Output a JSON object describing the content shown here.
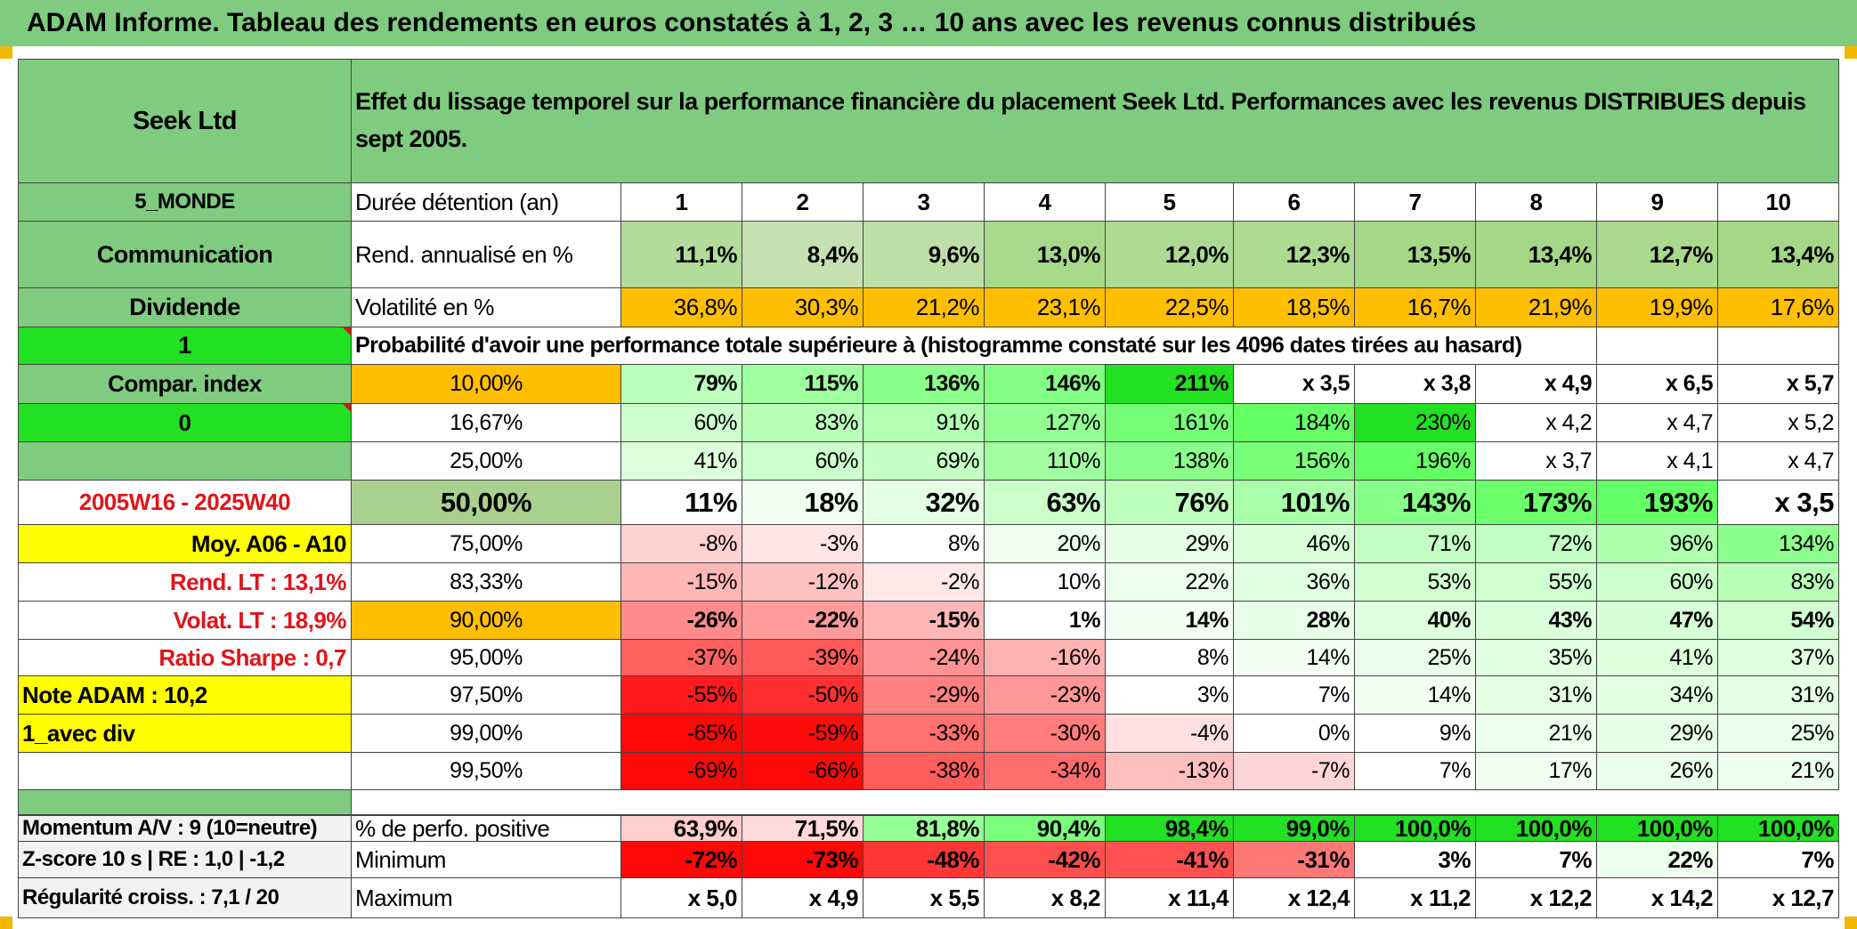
{
  "banner": "ADAM Informe. Tableau des rendements en euros constatés à 1, 2, 3 … 10 ans avec les revenus connus distribués",
  "header": {
    "fund": "Seek Ltd",
    "description": "Effet du lissage temporel sur la performance financière du placement Seek Ltd. Performances avec les revenus DISTRIBUES depuis sept 2005."
  },
  "left": {
    "zone": "5_MONDE",
    "sector": "Communication",
    "income_type": "Dividende",
    "input1": "1",
    "compar_index": "Compar. index",
    "input2": "0",
    "blank": "",
    "period": "2005W16 - 2025W40",
    "moy": "Moy. A06 - A10",
    "rend_lt": "Rend. LT :    13,1%",
    "volat_lt": "Volat. LT :    18,9%",
    "sharpe": "Ratio Sharpe :    0,7",
    "note": "Note ADAM : 10,2",
    "div_mode": "1_avec div",
    "momentum": "Momentum A/V : 9 (10=neutre)",
    "zscore": "Z-score 10 s | RE : 1,0 | -1,2",
    "regularite": "Régularité croiss. : 7,1 / 20"
  },
  "labels": {
    "duree": "Durée détention (an)",
    "rend": "Rend. annualisé en %",
    "vol": "Volatilité en %",
    "proba": "Probabilité d'avoir une performance totale supérieure à (histogramme constaté sur les 4096 dates tirées au hasard)",
    "perfo_pos": "% de perfo. positive",
    "minimum": "Minimum",
    "maximum": "Maximum"
  },
  "years": [
    "1",
    "2",
    "3",
    "4",
    "5",
    "6",
    "7",
    "8",
    "9",
    "10"
  ],
  "rend": [
    "11,1%",
    "8,4%",
    "9,6%",
    "13,0%",
    "12,0%",
    "12,3%",
    "13,5%",
    "13,4%",
    "12,7%",
    "13,4%"
  ],
  "vol": [
    "36,8%",
    "30,3%",
    "21,2%",
    "23,1%",
    "22,5%",
    "18,5%",
    "16,7%",
    "21,9%",
    "19,9%",
    "17,6%"
  ],
  "proba_rows": [
    {
      "p": "10,00%",
      "v": [
        "79%",
        "115%",
        "136%",
        "146%",
        "211%",
        "x 3,5",
        "x 3,8",
        "x 4,9",
        "x 6,5",
        "x 5,7"
      ]
    },
    {
      "p": "16,67%",
      "v": [
        "60%",
        "83%",
        "91%",
        "127%",
        "161%",
        "184%",
        "230%",
        "x 4,2",
        "x 4,7",
        "x 5,2"
      ]
    },
    {
      "p": "25,00%",
      "v": [
        "41%",
        "60%",
        "69%",
        "110%",
        "138%",
        "156%",
        "196%",
        "x 3,7",
        "x 4,1",
        "x 4,7"
      ]
    },
    {
      "p": "50,00%",
      "v": [
        "11%",
        "18%",
        "32%",
        "63%",
        "76%",
        "101%",
        "143%",
        "173%",
        "193%",
        "x 3,5"
      ]
    },
    {
      "p": "75,00%",
      "v": [
        "-8%",
        "-3%",
        "8%",
        "20%",
        "29%",
        "46%",
        "71%",
        "72%",
        "96%",
        "134%"
      ]
    },
    {
      "p": "83,33%",
      "v": [
        "-15%",
        "-12%",
        "-2%",
        "10%",
        "22%",
        "36%",
        "53%",
        "55%",
        "60%",
        "83%"
      ]
    },
    {
      "p": "90,00%",
      "v": [
        "-26%",
        "-22%",
        "-15%",
        "1%",
        "14%",
        "28%",
        "40%",
        "43%",
        "47%",
        "54%"
      ]
    },
    {
      "p": "95,00%",
      "v": [
        "-37%",
        "-39%",
        "-24%",
        "-16%",
        "8%",
        "14%",
        "25%",
        "35%",
        "41%",
        "37%"
      ]
    },
    {
      "p": "97,50%",
      "v": [
        "-55%",
        "-50%",
        "-29%",
        "-23%",
        "3%",
        "7%",
        "14%",
        "31%",
        "34%",
        "31%"
      ]
    },
    {
      "p": "99,00%",
      "v": [
        "-65%",
        "-59%",
        "-33%",
        "-30%",
        "-4%",
        "0%",
        "9%",
        "21%",
        "29%",
        "25%"
      ]
    },
    {
      "p": "99,50%",
      "v": [
        "-69%",
        "-66%",
        "-38%",
        "-34%",
        "-13%",
        "-7%",
        "7%",
        "17%",
        "26%",
        "21%"
      ]
    }
  ],
  "perfo_pos": [
    "63,9%",
    "71,5%",
    "81,8%",
    "90,4%",
    "98,4%",
    "99,0%",
    "100,0%",
    "100,0%",
    "100,0%",
    "100,0%"
  ],
  "minimum": [
    "-72%",
    "-73%",
    "-48%",
    "-42%",
    "-41%",
    "-31%",
    "3%",
    "7%",
    "22%",
    "7%"
  ],
  "maximum": [
    "x 5,0",
    "x 4,9",
    "x 5,5",
    "x 8,2",
    "x 11,4",
    "x 12,4",
    "x 11,2",
    "x 12,2",
    "x 14,2",
    "x 12,7"
  ],
  "colors": {
    "header_green": "#7fcb7f",
    "bright_green": "#22e022",
    "highlight_yellow": "#ffff00",
    "orange": "#ffbf00",
    "label_red": "#e0141a"
  }
}
